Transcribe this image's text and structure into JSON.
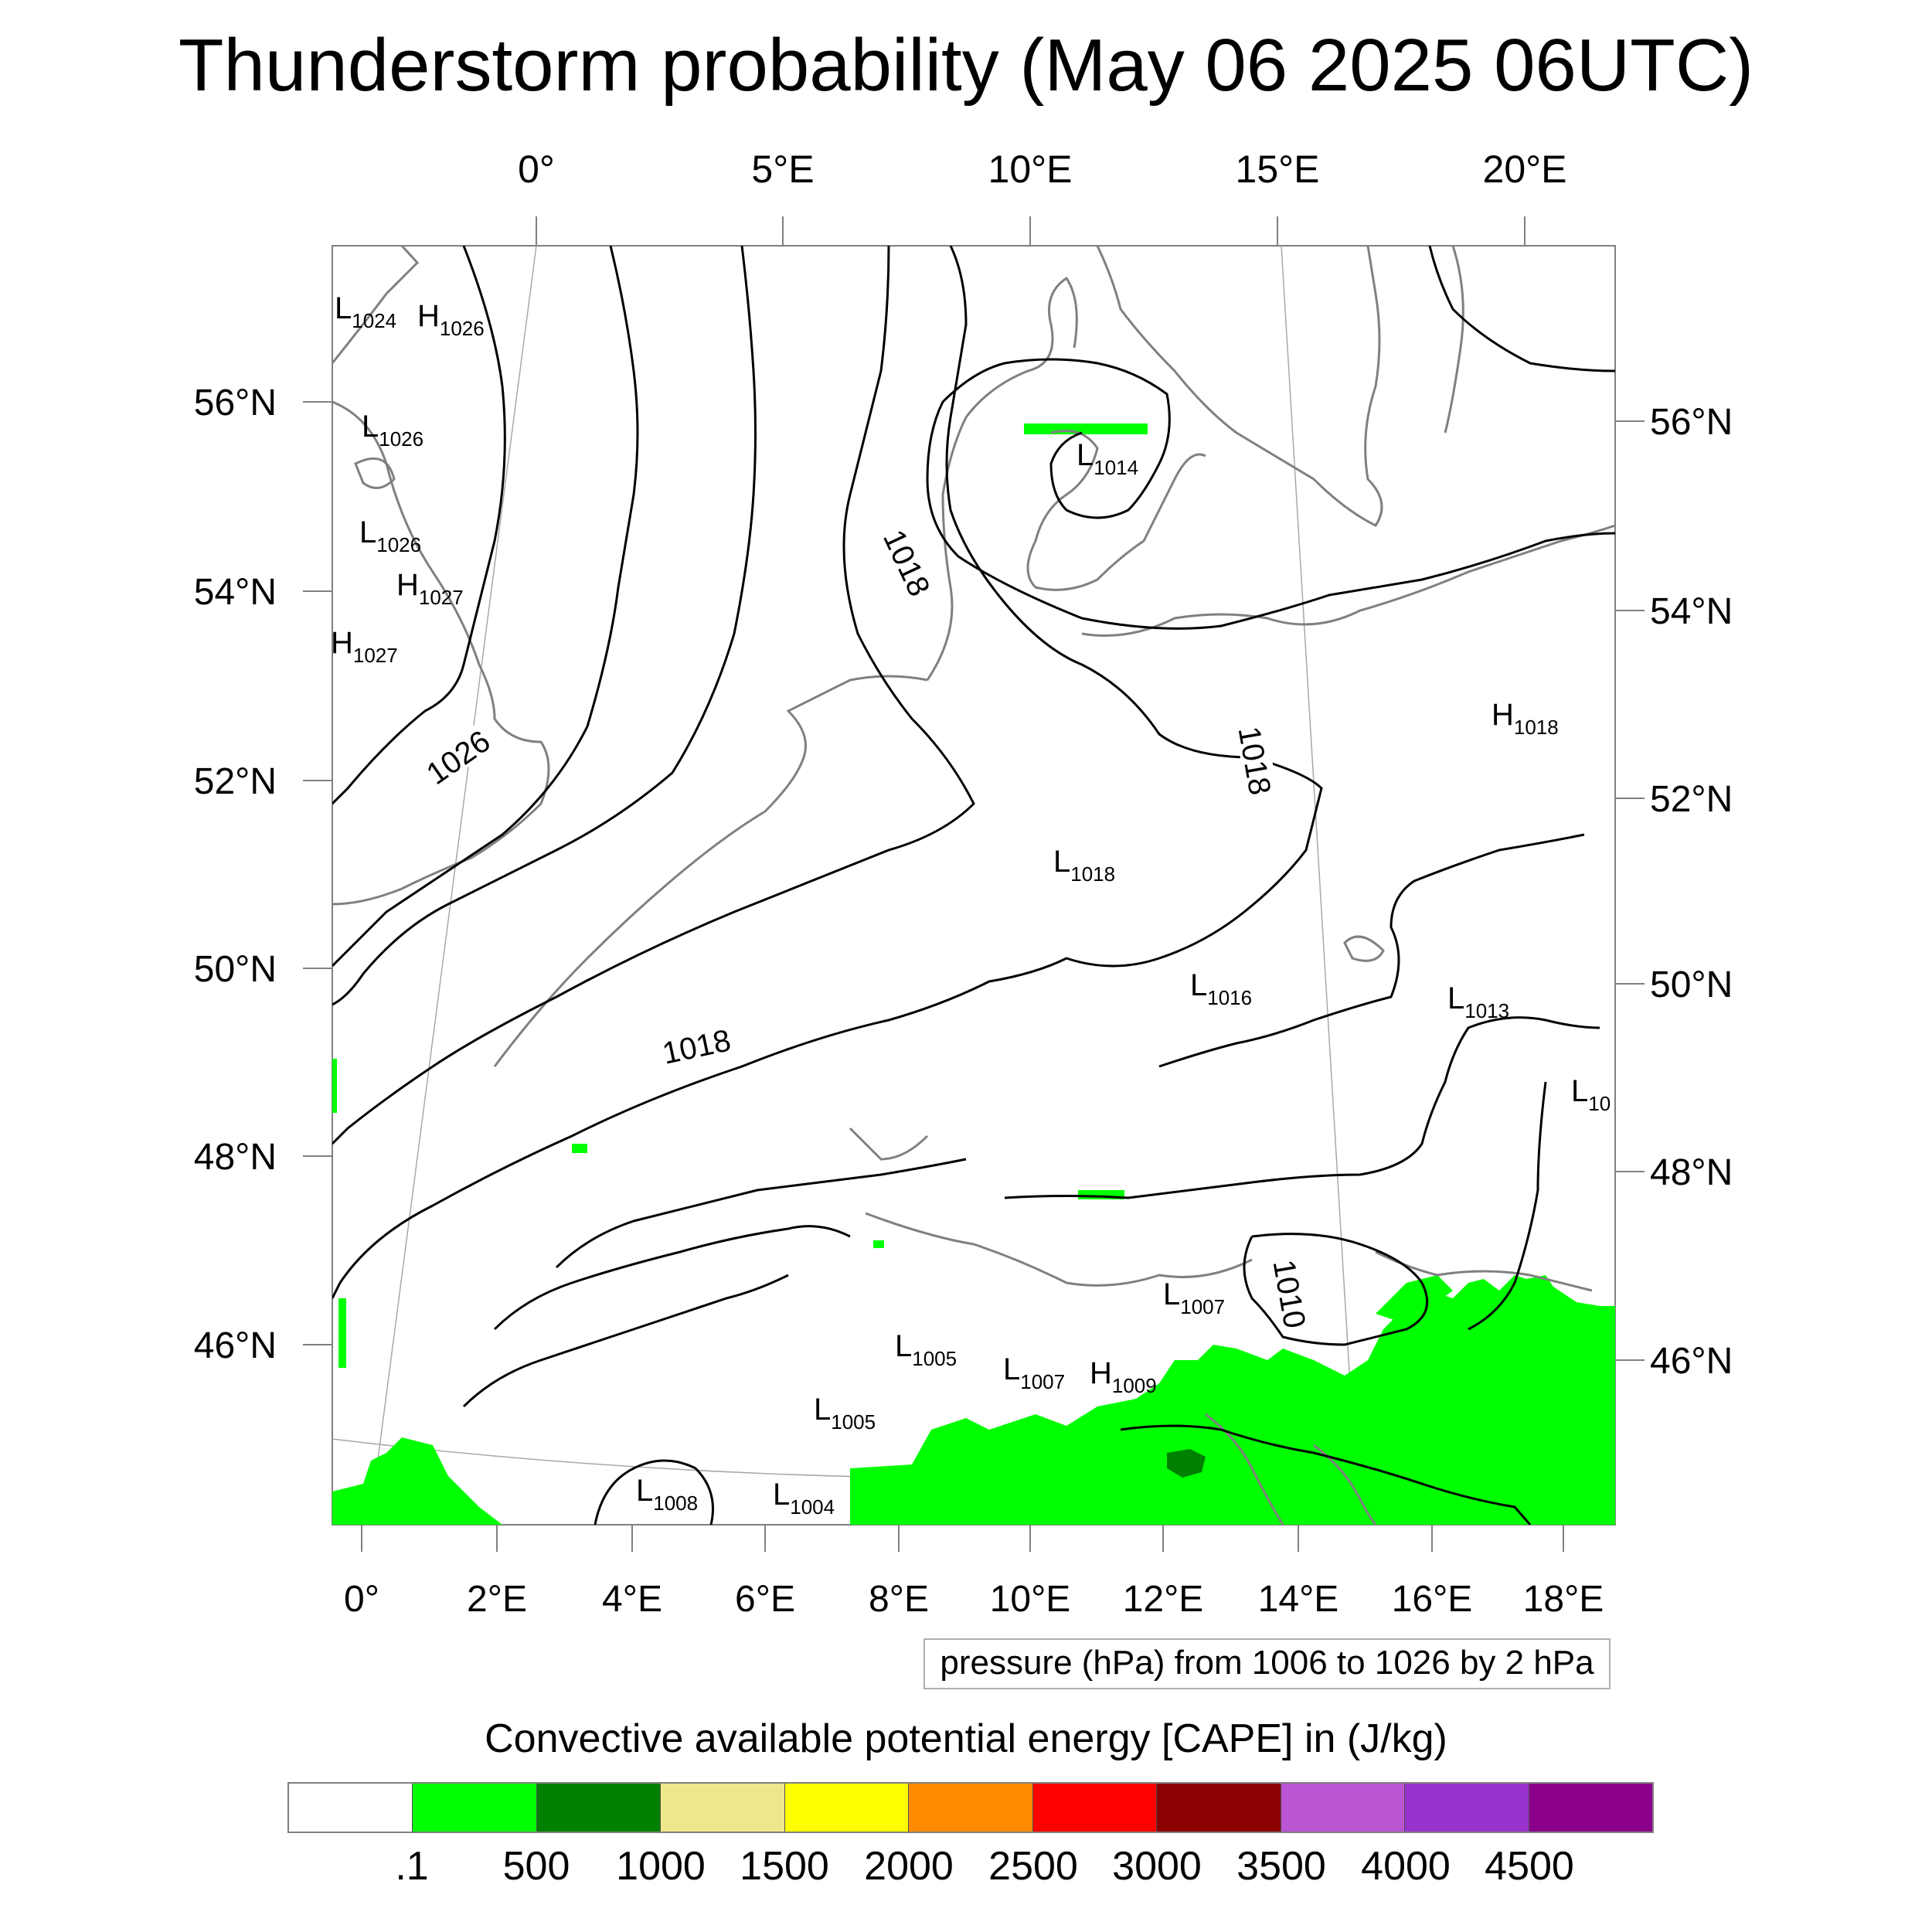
{
  "title": "Thunderstorm probability (May 06 2025 06UTC)",
  "top_lon_labels": [
    "0°",
    "5°E",
    "10°E",
    "15°E",
    "20°E"
  ],
  "bottom_lon_labels": [
    "0°",
    "2°E",
    "4°E",
    "6°E",
    "8°E",
    "10°E",
    "12°E",
    "14°E",
    "16°E",
    "18°E"
  ],
  "left_lat_labels": [
    "56°N",
    "54°N",
    "52°N",
    "50°N",
    "48°N",
    "46°N"
  ],
  "right_lat_labels": [
    "56°N",
    "54°N",
    "52°N",
    "50°N",
    "48°N",
    "46°N"
  ],
  "contour_labels": [
    "1026",
    "1018",
    "1018",
    "1018",
    "1010"
  ],
  "pressure_centers": [
    {
      "type": "L",
      "value": "1024"
    },
    {
      "type": "H",
      "value": "1026"
    },
    {
      "type": "L",
      "value": "1026"
    },
    {
      "type": "L",
      "value": "1026"
    },
    {
      "type": "H",
      "value": "1027"
    },
    {
      "type": "H",
      "value": "1027"
    },
    {
      "type": "L",
      "value": "1014"
    },
    {
      "type": "H",
      "value": "1018"
    },
    {
      "type": "L",
      "value": "1018"
    },
    {
      "type": "L",
      "value": "1016"
    },
    {
      "type": "L",
      "value": "1013"
    },
    {
      "type": "L",
      "value": "10"
    },
    {
      "type": "L",
      "value": "1007"
    },
    {
      "type": "L",
      "value": "1005"
    },
    {
      "type": "L",
      "value": "1007"
    },
    {
      "type": "H",
      "value": "1009"
    },
    {
      "type": "L",
      "value": "1005"
    },
    {
      "type": "L",
      "value": "1008"
    },
    {
      "type": "L",
      "value": "1004"
    }
  ],
  "pressure_note": "pressure (hPa) from 1006 to 1026 by 2 hPa",
  "colorbar": {
    "title": "Convective available potential energy [CAPE] in (J/kg)",
    "colors": [
      "#ffffff",
      "#00ff00",
      "#008000",
      "#f0e68c",
      "#ffff00",
      "#ff8c00",
      "#ff0000",
      "#8b0000",
      "#ba55d3",
      "#9932cc",
      "#8b008b"
    ],
    "tick_labels": [
      ".1",
      "500",
      "1000",
      "1500",
      "2000",
      "2500",
      "3000",
      "3500",
      "4000",
      "4500"
    ]
  },
  "colors": {
    "cape_low": "#00ff00",
    "cape_mid": "#008000",
    "coast": "#808080",
    "isobar": "#000000"
  }
}
